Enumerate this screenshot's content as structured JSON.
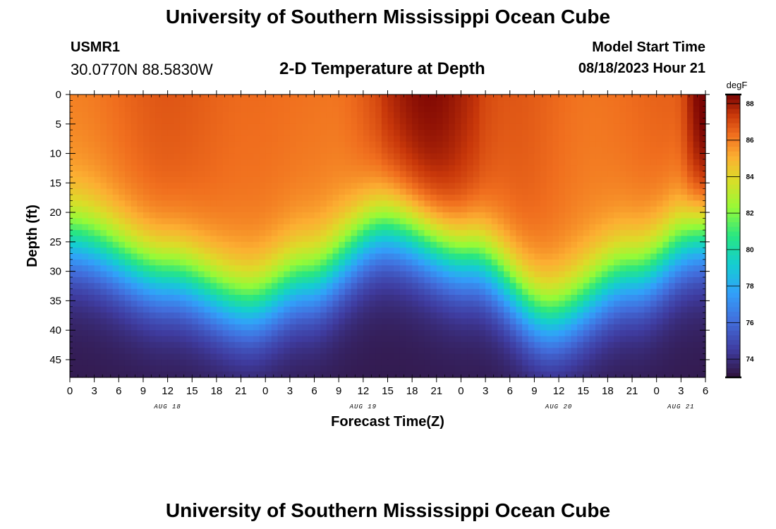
{
  "header": {
    "title": "University of Southern Mississippi Ocean Cube",
    "station": "USMR1",
    "coords": "30.0770N  88.5830W",
    "plot_title": "2-D Temperature at Depth",
    "model_label": "Model Start Time",
    "model_time": "08/18/2023 Hour 21"
  },
  "footer": {
    "title": "University of Southern Mississippi Ocean Cube"
  },
  "chart_data": {
    "type": "heatmap",
    "title": "2-D Temperature at Depth",
    "xlabel": "Forecast Time(Z)",
    "ylabel": "Depth (ft)",
    "x_tick_labels": [
      "0",
      "3",
      "6",
      "9",
      "12",
      "15",
      "18",
      "21",
      "0",
      "3",
      "6",
      "9",
      "12",
      "15",
      "18",
      "21",
      "0",
      "3",
      "6",
      "9",
      "12",
      "15",
      "18",
      "21",
      "0",
      "3",
      "6"
    ],
    "date_labels": [
      {
        "label": "AUG 18",
        "hours_from_start": 12
      },
      {
        "label": "AUG 19",
        "hours_from_start": 36
      },
      {
        "label": "AUG 20",
        "hours_from_start": 60
      },
      {
        "label": "AUG 21",
        "hours_from_start": 75
      }
    ],
    "x_range_hours": [
      0,
      78
    ],
    "y_ticks": [
      0,
      5,
      10,
      15,
      20,
      25,
      30,
      35,
      40,
      45
    ],
    "y_range_ft": [
      0,
      48
    ],
    "colorbar": {
      "unit": "degF",
      "ticks": [
        74,
        76,
        78,
        80,
        82,
        84,
        86,
        88
      ],
      "range": [
        73,
        88.5
      ]
    },
    "thermocline_depth_ft": {
      "hours": [
        0,
        12,
        22,
        29,
        39,
        49,
        59,
        69,
        78
      ],
      "depth": [
        21,
        27,
        32,
        28,
        19,
        24,
        34,
        27,
        20
      ]
    },
    "surface_temp_degF": {
      "hours": [
        0,
        12,
        22,
        32,
        44,
        54,
        64,
        74,
        78
      ],
      "temp": [
        85.8,
        86.6,
        86.2,
        86.0,
        88.0,
        86.6,
        86.0,
        86.4,
        88.4
      ]
    },
    "bottom_temp_degF": 73.3
  }
}
